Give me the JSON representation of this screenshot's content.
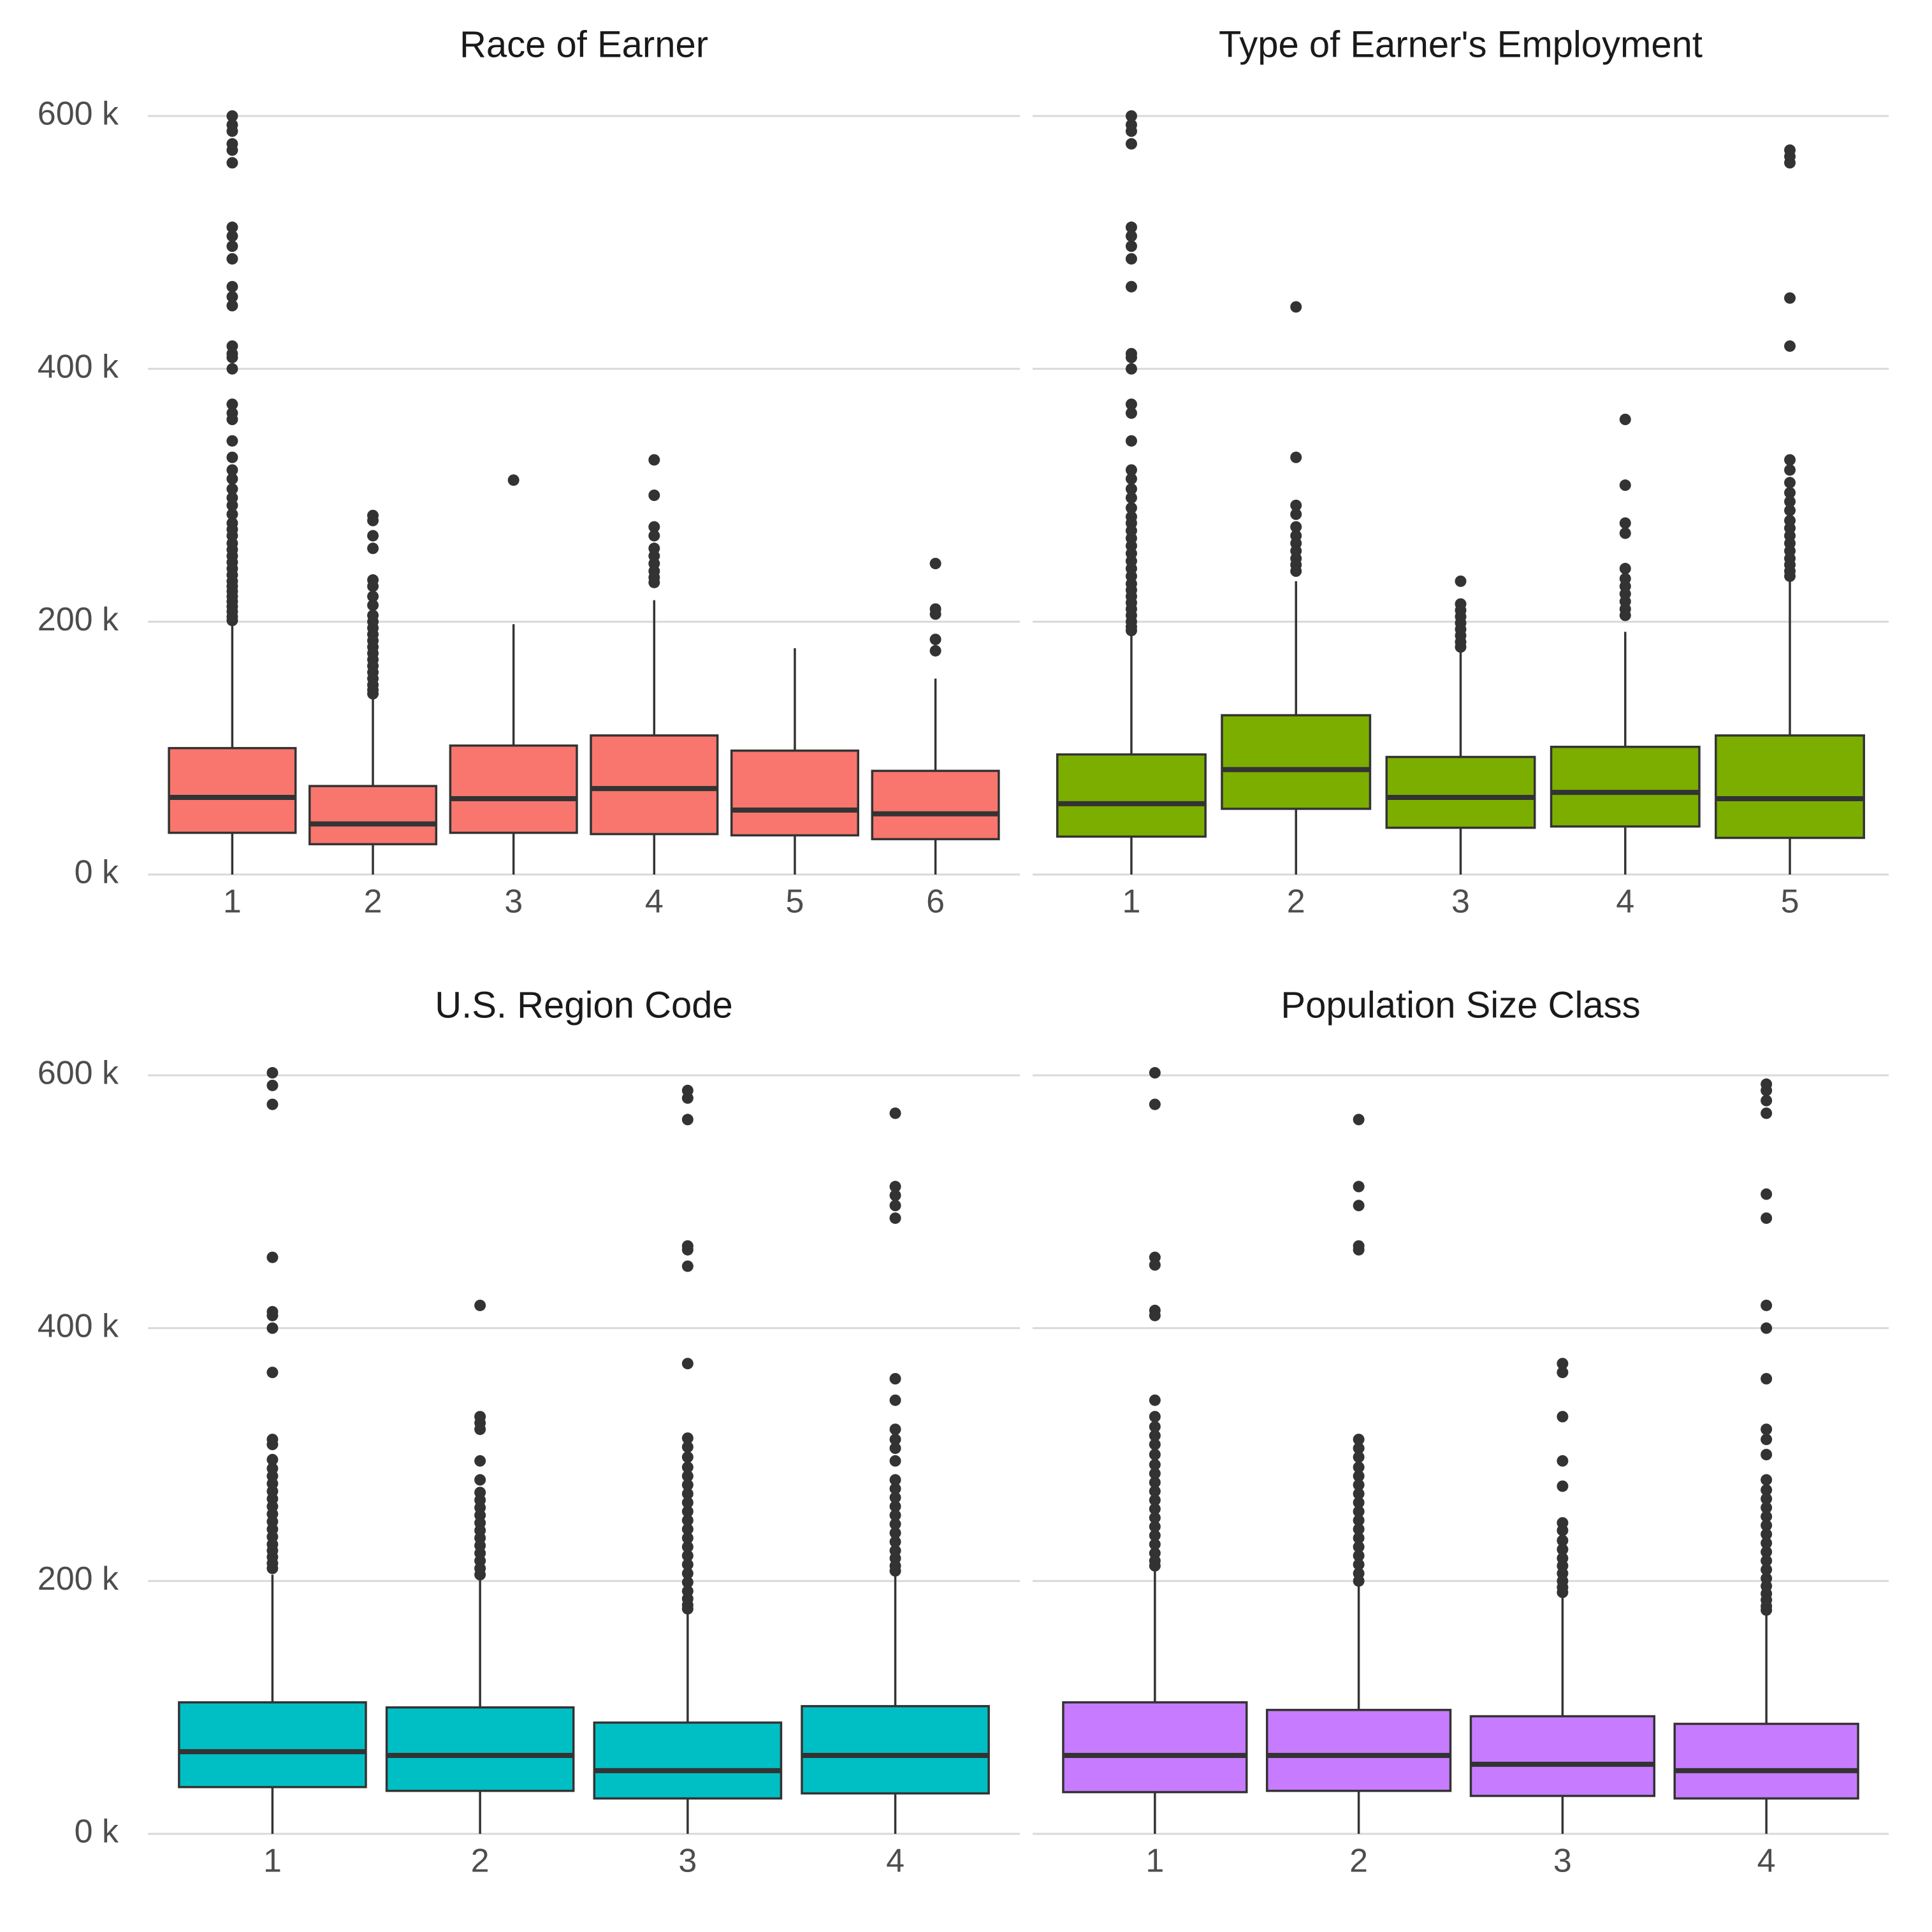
{
  "chart_data": [
    {
      "type": "box",
      "title": "Race of Earner",
      "fill": "#F8766D",
      "categories": [
        "1",
        "2",
        "3",
        "4",
        "5",
        "6"
      ],
      "ylim": [
        0,
        600000
      ],
      "yticks": [
        0,
        200000,
        400000,
        600000
      ],
      "ytick_labels": [
        "0 k",
        "200 k",
        "400 k",
        "600 k"
      ],
      "boxes": [
        {
          "category": "1",
          "whisker_low": 0,
          "q1": 33000,
          "median": 61000,
          "q3": 100000,
          "whisker_high": 198000,
          "outliers": [
            600000,
            593000,
            588000,
            578000,
            573000,
            563000,
            512000,
            505000,
            497000,
            487000,
            465000,
            457000,
            450000,
            418000,
            412000,
            409000,
            400000,
            372000,
            365000,
            360000,
            343000,
            330000,
            320000,
            313000,
            305000,
            298000,
            292000,
            285000,
            278000,
            273000,
            268000,
            262000,
            257000,
            252000,
            247000,
            242000,
            237000,
            232000,
            228000,
            224000,
            220000,
            216000,
            212000,
            208000,
            204000,
            201000
          ]
        },
        {
          "category": "2",
          "whisker_low": 0,
          "q1": 24000,
          "median": 40000,
          "q3": 70000,
          "whisker_high": 140000,
          "outliers": [
            284000,
            280000,
            268000,
            258000,
            233000,
            228000,
            220000,
            213000,
            205000,
            200000,
            195000,
            190000,
            185000,
            180000,
            175000,
            170000,
            165000,
            160000,
            155000,
            150000,
            146000,
            143000
          ]
        },
        {
          "category": "3",
          "whisker_low": 0,
          "q1": 33000,
          "median": 60000,
          "q3": 102000,
          "whisker_high": 198000,
          "outliers": [
            312000
          ]
        },
        {
          "category": "4",
          "whisker_low": 0,
          "q1": 32000,
          "median": 68000,
          "q3": 110000,
          "whisker_high": 217000,
          "outliers": [
            328000,
            300000,
            275000,
            268000,
            258000,
            252000,
            246000,
            240000,
            235000,
            231000
          ]
        },
        {
          "category": "5",
          "whisker_low": 0,
          "q1": 31000,
          "median": 51000,
          "q3": 98000,
          "whisker_high": 179000,
          "outliers": []
        },
        {
          "category": "6",
          "whisker_low": 0,
          "q1": 28000,
          "median": 48000,
          "q3": 82000,
          "whisker_high": 155000,
          "outliers": [
            246000,
            210000,
            206000,
            186000,
            177000
          ]
        }
      ]
    },
    {
      "type": "box",
      "title": "Type of Earner's Employment",
      "fill": "#7CAE00",
      "categories": [
        "1",
        "2",
        "3",
        "4",
        "5"
      ],
      "ylim": [
        0,
        600000
      ],
      "yticks": [
        0,
        200000,
        400000,
        600000
      ],
      "ytick_labels": [
        "0 k",
        "200 k",
        "400 k",
        "600 k"
      ],
      "boxes": [
        {
          "category": "1",
          "whisker_low": 0,
          "q1": 30000,
          "median": 56000,
          "q3": 95000,
          "whisker_high": 191000,
          "outliers": [
            600000,
            593000,
            588000,
            578000,
            512000,
            505000,
            497000,
            487000,
            465000,
            412000,
            409000,
            400000,
            372000,
            365000,
            343000,
            320000,
            313000,
            305000,
            298000,
            290000,
            283000,
            278000,
            272000,
            266000,
            260000,
            254000,
            248000,
            242000,
            236000,
            230000,
            225000,
            220000,
            215000,
            210000,
            205000,
            200000,
            196000,
            193000
          ]
        },
        {
          "category": "2",
          "whisker_low": 0,
          "q1": 52000,
          "median": 83000,
          "q3": 126000,
          "whisker_high": 232000,
          "outliers": [
            449000,
            330000,
            292000,
            285000,
            275000,
            268000,
            262000,
            256000,
            250000,
            245000,
            240000
          ]
        },
        {
          "category": "3",
          "whisker_low": 0,
          "q1": 37000,
          "median": 61000,
          "q3": 93000,
          "whisker_high": 178000,
          "outliers": [
            232000,
            214000,
            209000,
            204000,
            199000,
            194000,
            189000,
            184000,
            180000
          ]
        },
        {
          "category": "4",
          "whisker_low": 0,
          "q1": 38000,
          "median": 65000,
          "q3": 101000,
          "whisker_high": 192000,
          "outliers": [
            360000,
            308000,
            278000,
            270000,
            242000,
            234000,
            228000,
            222000,
            216000,
            210000,
            205000
          ]
        },
        {
          "category": "5",
          "whisker_low": 0,
          "q1": 29000,
          "median": 60000,
          "q3": 110000,
          "whisker_high": 233000,
          "outliers": [
            573000,
            568000,
            563000,
            456000,
            418000,
            328000,
            320000,
            310000,
            302000,
            295000,
            288000,
            280000,
            274000,
            268000,
            262000,
            256000,
            250000,
            245000,
            240000,
            236000
          ]
        }
      ]
    },
    {
      "type": "box",
      "title": "U.S. Region Code",
      "fill": "#00BFC4",
      "categories": [
        "1",
        "2",
        "3",
        "4"
      ],
      "ylim": [
        0,
        600000
      ],
      "yticks": [
        0,
        200000,
        400000,
        600000
      ],
      "ytick_labels": [
        "0 k",
        "200 k",
        "400 k",
        "600 k"
      ],
      "boxes": [
        {
          "category": "1",
          "whisker_low": 0,
          "q1": 37000,
          "median": 65000,
          "q3": 104000,
          "whisker_high": 205000,
          "outliers": [
            602000,
            592000,
            577000,
            456000,
            413000,
            410000,
            400000,
            365000,
            312000,
            308000,
            296000,
            289000,
            283000,
            277000,
            271000,
            265000,
            259000,
            253000,
            247000,
            241000,
            235000,
            229000,
            224000,
            219000,
            214000,
            210000
          ]
        },
        {
          "category": "2",
          "whisker_low": 0,
          "q1": 34000,
          "median": 62000,
          "q3": 100000,
          "whisker_high": 202000,
          "outliers": [
            418000,
            330000,
            325000,
            320000,
            295000,
            280000,
            270000,
            264000,
            258000,
            252000,
            246000,
            240000,
            234000,
            228000,
            222000,
            216000,
            210000,
            205000
          ]
        },
        {
          "category": "3",
          "whisker_low": 0,
          "q1": 28000,
          "median": 50000,
          "q3": 88000,
          "whisker_high": 175000,
          "outliers": [
            588000,
            582000,
            565000,
            465000,
            462000,
            449000,
            372000,
            313000,
            306000,
            298000,
            290000,
            283000,
            276000,
            269000,
            262000,
            255000,
            248000,
            241000,
            234000,
            227000,
            220000,
            213000,
            206000,
            199000,
            192000,
            186000,
            181000,
            178000
          ]
        },
        {
          "category": "4",
          "whisker_low": 0,
          "q1": 32000,
          "median": 62000,
          "q3": 101000,
          "whisker_high": 205000,
          "outliers": [
            570000,
            512000,
            505000,
            497000,
            487000,
            360000,
            343000,
            320000,
            312000,
            305000,
            295000,
            280000,
            273000,
            266000,
            259000,
            252000,
            245000,
            238000,
            231000,
            224000,
            218000,
            212000,
            208000
          ]
        }
      ]
    },
    {
      "type": "box",
      "title": "Population Size Class",
      "fill": "#C77CFF",
      "categories": [
        "1",
        "2",
        "3",
        "4"
      ],
      "ylim": [
        0,
        600000
      ],
      "yticks": [
        0,
        200000,
        400000,
        600000
      ],
      "ytick_labels": [
        "0 k",
        "200 k",
        "400 k",
        "600 k"
      ],
      "boxes": [
        {
          "category": "1",
          "whisker_low": 0,
          "q1": 33000,
          "median": 62000,
          "q3": 104000,
          "whisker_high": 210000,
          "outliers": [
            602000,
            577000,
            456000,
            450000,
            414000,
            410000,
            343000,
            330000,
            322000,
            315000,
            308000,
            300000,
            292000,
            285000,
            278000,
            271000,
            264000,
            257000,
            250000,
            243000,
            236000,
            229000,
            222000,
            216000,
            212000
          ]
        },
        {
          "category": "2",
          "whisker_low": 0,
          "q1": 34000,
          "median": 62000,
          "q3": 98000,
          "whisker_high": 196000,
          "outliers": [
            565000,
            512000,
            497000,
            465000,
            462000,
            312000,
            305000,
            298000,
            290000,
            283000,
            276000,
            269000,
            262000,
            255000,
            248000,
            241000,
            234000,
            227000,
            220000,
            213000,
            206000,
            200000
          ]
        },
        {
          "category": "3",
          "whisker_low": 0,
          "q1": 30000,
          "median": 55000,
          "q3": 93000,
          "whisker_high": 189000,
          "outliers": [
            372000,
            365000,
            330000,
            295000,
            275000,
            246000,
            240000,
            232000,
            225000,
            218000,
            212000,
            206000,
            200000,
            195000,
            191000
          ]
        },
        {
          "category": "4",
          "whisker_low": 0,
          "q1": 28000,
          "median": 50000,
          "q3": 87000,
          "whisker_high": 175000,
          "outliers": [
            593000,
            588000,
            580000,
            570000,
            506000,
            487000,
            418000,
            400000,
            360000,
            320000,
            312000,
            300000,
            280000,
            272000,
            265000,
            258000,
            251000,
            244000,
            237000,
            230000,
            223000,
            216000,
            209000,
            202000,
            196000,
            190000,
            185000,
            180000,
            177000
          ]
        }
      ]
    }
  ]
}
